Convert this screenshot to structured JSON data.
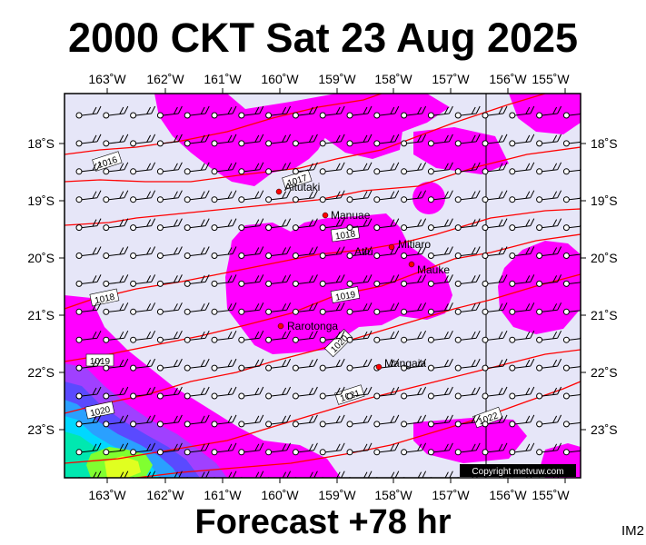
{
  "title": "2000 CKT Sat 23 Aug 2025",
  "footer": "Forecast +78 hr",
  "image_tag": "IM2",
  "copyright": "Copyright metvuw.com",
  "longitude_labels": [
    "163˚W",
    "162˚W",
    "161˚W",
    "160˚W",
    "159˚W",
    "158˚W",
    "157˚W",
    "156˚W",
    "155˚W"
  ],
  "latitude_labels": [
    "18˚S",
    "19˚S",
    "20˚S",
    "21˚S",
    "22˚S",
    "23˚S"
  ],
  "isobar_labels": [
    "1016",
    "1017",
    "1018",
    "1018",
    "1019",
    "1019",
    "1020",
    "1020",
    "1021",
    "1022"
  ],
  "places": [
    {
      "name": "Aitutaki"
    },
    {
      "name": "Manuae"
    },
    {
      "name": "Atiu"
    },
    {
      "name": "Mitiaro"
    },
    {
      "name": "Mauke"
    },
    {
      "name": "Rarotonga"
    },
    {
      "name": "Mangaia"
    }
  ],
  "colors": {
    "background": "#e6e6f8",
    "rain": "#ff00ff",
    "rain_heavy": "#7f3fff",
    "isobar": "#ff0000",
    "town": "#ff0000"
  }
}
